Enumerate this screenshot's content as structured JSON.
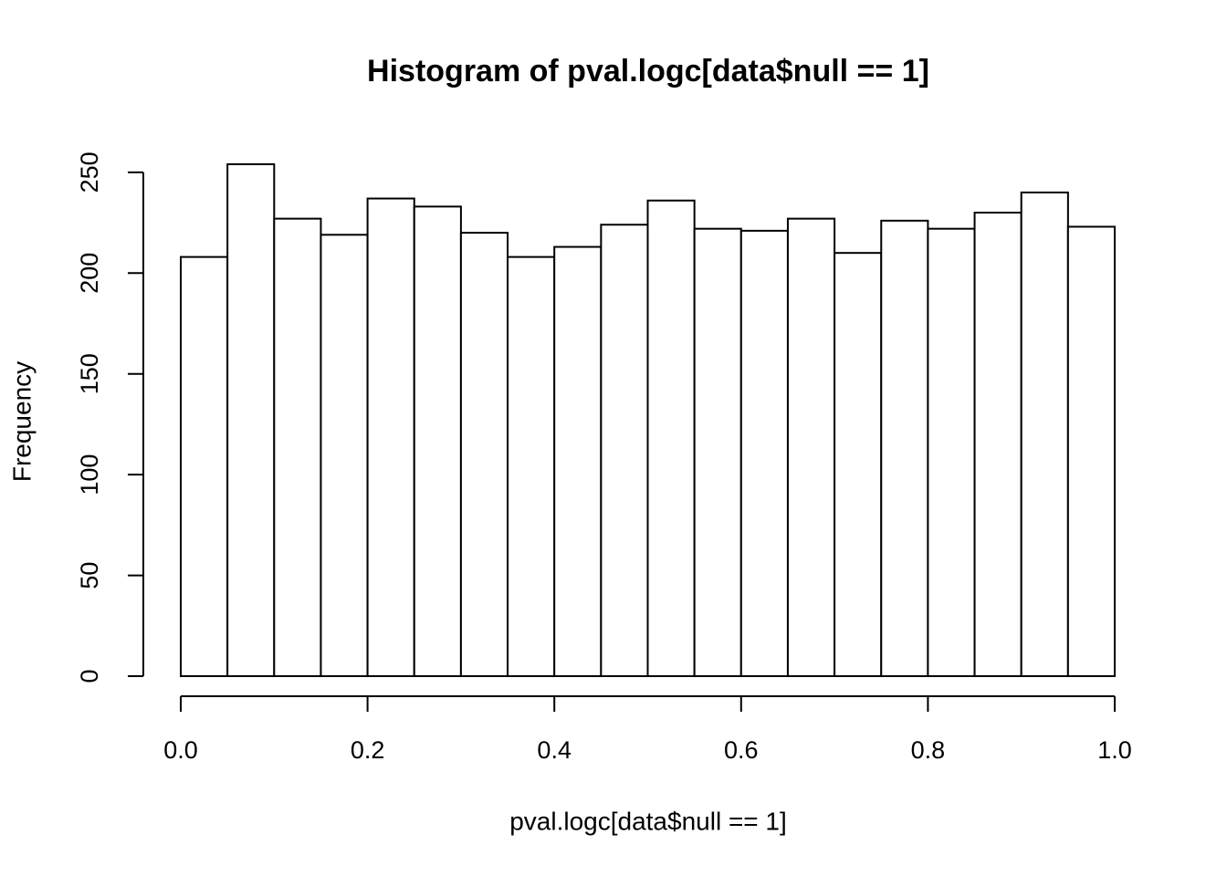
{
  "chart_data": {
    "type": "histogram",
    "title": "Histogram of pval.logc[data$null == 1]",
    "x_label": "pval.logc[data$null == 1]",
    "y_label": "Frequency",
    "bins": [
      0,
      0.05,
      0.1,
      0.15,
      0.2,
      0.25,
      0.3,
      0.35,
      0.4,
      0.45,
      0.5,
      0.55,
      0.6,
      0.65,
      0.7,
      0.75,
      0.8,
      0.85,
      0.9,
      0.95,
      1.0
    ],
    "counts": [
      208,
      254,
      227,
      219,
      237,
      233,
      220,
      208,
      213,
      224,
      236,
      222,
      221,
      227,
      210,
      226,
      222,
      230,
      240,
      223
    ],
    "color": "#ffffff",
    "edge_color": "#000000",
    "xlim": [
      0,
      1
    ],
    "ylim": [
      0,
      254
    ],
    "xticks": [
      {
        "value": 0,
        "label": "0.0"
      },
      0.2,
      0.4,
      0.6,
      0.8,
      {
        "value": 1,
        "label": "1.0"
      }
    ],
    "yticks": [
      0,
      50,
      100,
      150,
      200,
      250
    ]
  }
}
